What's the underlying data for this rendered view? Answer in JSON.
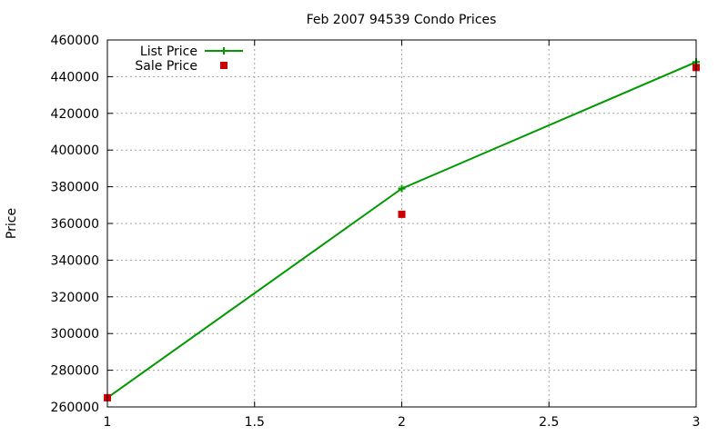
{
  "chart_data": {
    "type": "line",
    "title": "Feb 2007 94539 Condo Prices",
    "xlabel": "",
    "ylabel": "Price",
    "x": [
      1,
      2,
      3
    ],
    "xlim": [
      1,
      3
    ],
    "ylim": [
      260000,
      460000
    ],
    "x_ticks": [
      1,
      1.5,
      2,
      2.5,
      3
    ],
    "y_ticks": [
      260000,
      280000,
      300000,
      320000,
      340000,
      360000,
      380000,
      400000,
      420000,
      440000,
      460000
    ],
    "grid": true,
    "legend_position": "top-left",
    "series": [
      {
        "name": "List Price",
        "style": "line+cross",
        "color": "#009900",
        "values": [
          265000,
          379000,
          448000
        ]
      },
      {
        "name": "Sale Price",
        "style": "square",
        "color": "#cc0000",
        "values": [
          265000,
          365000,
          445000
        ]
      }
    ]
  }
}
